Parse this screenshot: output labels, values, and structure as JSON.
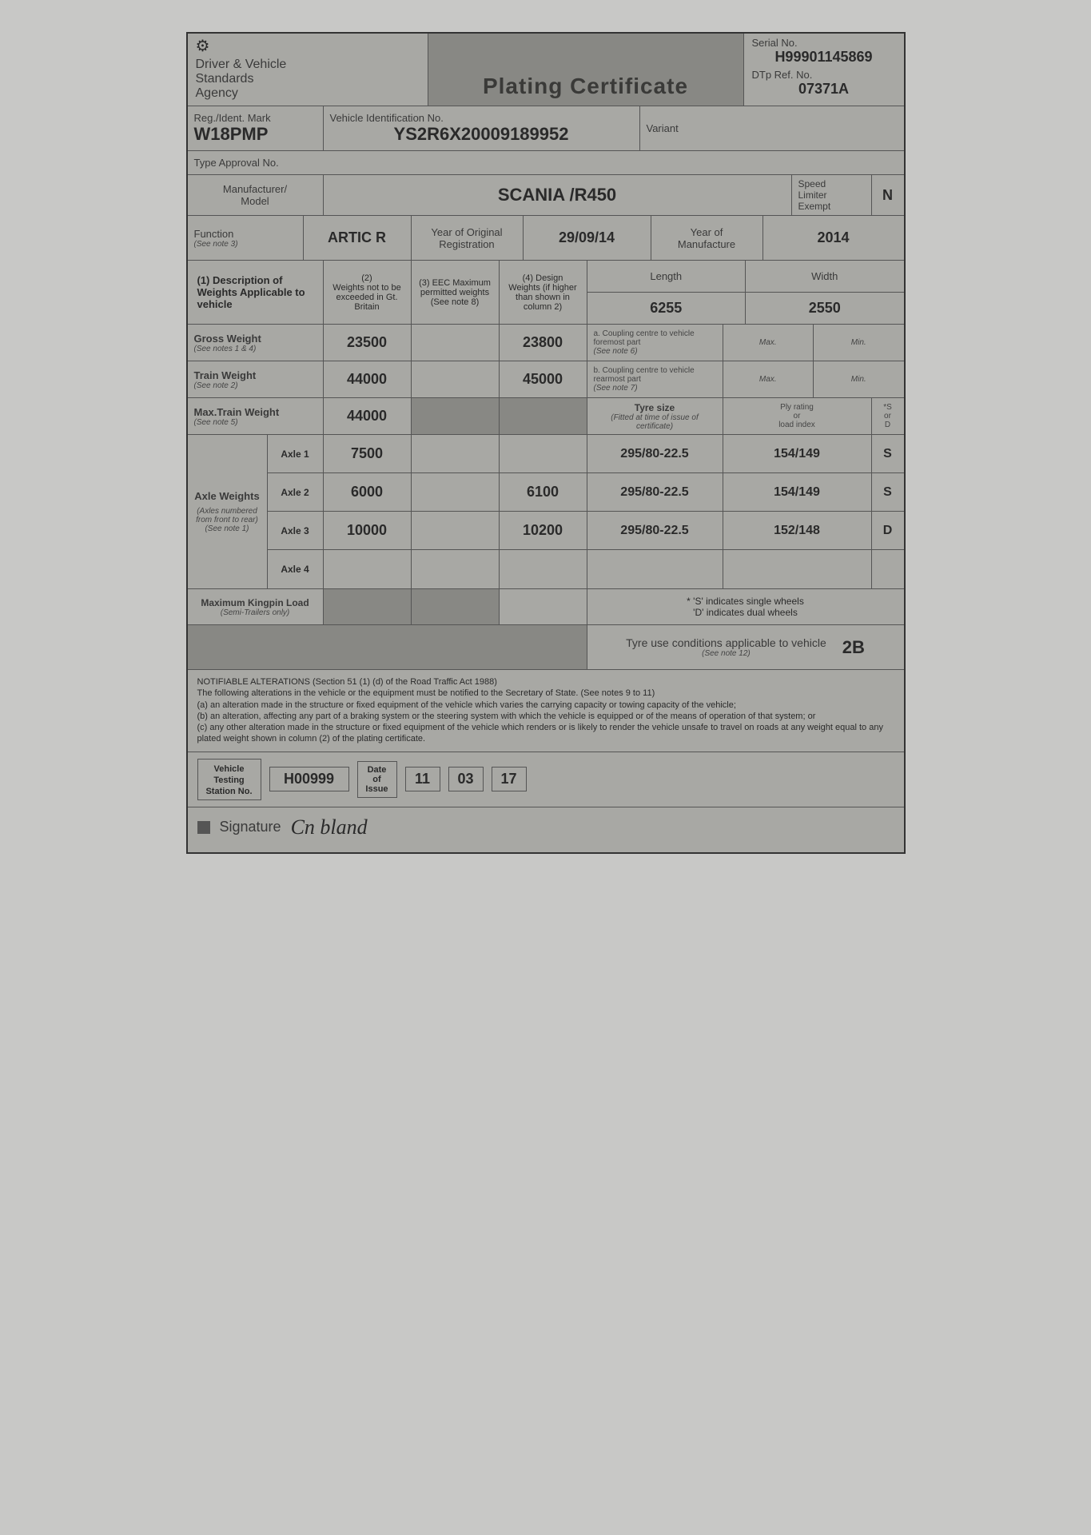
{
  "doc": {
    "agency_line1": "Driver & Vehicle",
    "agency_line2": "Standards",
    "agency_line3": "Agency",
    "title": "Plating Certificate",
    "serial_lbl": "Serial No.",
    "serial_no": "H99901145869",
    "dtp_lbl": "DTp Ref. No.",
    "dtp_ref": "07371A",
    "reg_lbl": "Reg./Ident. Mark",
    "reg_mark": "W18PMP",
    "vin_lbl": "Vehicle Identification No.",
    "vin": "YS2R6X20009189952",
    "variant_lbl": "Variant",
    "variant": "",
    "type_approval_lbl": "Type Approval No.",
    "type_approval": "",
    "mfr_lbl": "Manufacturer/\nModel",
    "mfr_model": "SCANIA /R450",
    "speed_lbl": "Speed\nLimiter\nExempt",
    "speed_val": "N",
    "function_lbl": "Function",
    "function_note": "(See note 3)",
    "function_val": "ARTIC R",
    "yor_lbl": "Year of Original\nRegistration",
    "yor_val": "29/09/14",
    "yom_lbl": "Year of\nManufacture",
    "yom_val": "2014",
    "col1_hdr": "(1)   Description of Weights Applicable to vehicle",
    "col2_hdr": "(2)\nWeights not to be exceeded in Gt. Britain",
    "col3_hdr": "(3)   EEC Maximum permitted weights (See note 8)",
    "col4_hdr": "(4)  Design Weights (if higher than shown in column 2)",
    "length_lbl": "Length",
    "length_val": "6255",
    "width_lbl": "Width",
    "width_val": "2550",
    "gross_lbl": "Gross Weight",
    "gross_note": "(See notes 1 & 4)",
    "gross_c2": "23500",
    "gross_c3": "",
    "gross_c4": "23800",
    "coupling_a_lbl": "a.  Coupling centre to vehicle foremost part",
    "coupling_a_note": "(See note 6)",
    "coupling_a_max_lbl": "Max.",
    "coupling_a_min_lbl": "Min.",
    "train_lbl": "Train Weight",
    "train_note": "(See note 2)",
    "train_c2": "44000",
    "train_c3": "",
    "train_c4": "45000",
    "coupling_b_lbl": "b.  Coupling centre to vehicle rearmost part",
    "coupling_b_note": "(See note 7)",
    "coupling_b_max_lbl": "Max.",
    "coupling_b_min_lbl": "Min.",
    "maxtrain_lbl": "Max.Train Weight",
    "maxtrain_note": "(See note 5)",
    "maxtrain_c2": "44000",
    "tyre_lbl": "Tyre size",
    "tyre_note": "(Fitted at time of issue of certificate)",
    "ply_lbl": "Ply rating\nor\nload index",
    "sd_lbl": "*S\nor\nD",
    "axle_group_lbl": "Axle Weights",
    "axle_group_note": "(Axles numbered from front to rear)",
    "axle_group_note2": "(See note 1)",
    "axles": [
      {
        "name": "Axle 1",
        "c2": "7500",
        "c3": "",
        "c4": "",
        "tyre": "295/80-22.5",
        "ply": "154/149",
        "sd": "S"
      },
      {
        "name": "Axle 2",
        "c2": "6000",
        "c3": "",
        "c4": "6100",
        "tyre": "295/80-22.5",
        "ply": "154/149",
        "sd": "S"
      },
      {
        "name": "Axle 3",
        "c2": "10000",
        "c3": "",
        "c4": "10200",
        "tyre": "295/80-22.5",
        "ply": "152/148",
        "sd": "D"
      },
      {
        "name": "Axle 4",
        "c2": "",
        "c3": "",
        "c4": "",
        "tyre": "",
        "ply": "",
        "sd": ""
      }
    ],
    "kingpin_lbl": "Maximum Kingpin Load",
    "kingpin_note": "(Semi-Trailers only)",
    "sd_legend1": "* 'S' indicates single wheels",
    "sd_legend2": "'D' indicates dual wheels",
    "tyre_cond_lbl": "Tyre use conditions applicable to vehicle",
    "tyre_cond_note": "(See note 12)",
    "tyre_cond_val": "2B",
    "notes_title": "NOTIFIABLE ALTERATIONS (Section 51 (1) (d) of the Road Traffic Act 1988)",
    "notes_intro": "The following alterations in the vehicle or the equipment must be notified to the Secretary of State. (See notes 9 to 11)",
    "notes_a": "(a)  an alteration made in the structure or fixed equipment of the vehicle which varies the carrying capacity or towing capacity of the vehicle;",
    "notes_b": "(b)  an alteration, affecting any part of a braking system or the steering system with which the vehicle is equipped or of the means of operation of that system; or",
    "notes_c": "(c)  any other alteration made in the structure or fixed equipment of the vehicle which renders or is likely to render the vehicle unsafe to travel on roads at any weight equal to any plated weight shown in column (2) of the plating certificate.",
    "station_lbl": "Vehicle Testing Station No.",
    "station_val": "H00999",
    "date_lbl": "Date of Issue",
    "date_d": "11",
    "date_m": "03",
    "date_y": "17",
    "sig_lbl": "Signature",
    "sig_val": "Cn bland"
  },
  "colors": {
    "page_bg": "#c8c8c6",
    "cert_bg": "#a8a8a4",
    "shaded_bg": "#888884",
    "border": "#555555",
    "text": "#2a2a2a"
  }
}
